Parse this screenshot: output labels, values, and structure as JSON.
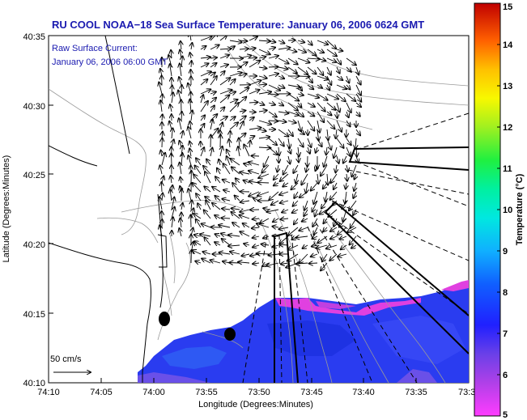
{
  "title": "RU COOL  NOAA−18  Sea Surface Temperature:  January 06, 2006 0624 GMT",
  "current_annotation": {
    "line1": "Raw Surface Current:",
    "line2": "January 06, 2006 06:00 GMT"
  },
  "scale_label": "50 cm/s",
  "axes": {
    "xlabel": "Longitude (Degrees:Minutes)",
    "ylabel": "Latitude (Degrees:Minutes)",
    "x_ticks": [
      "74:10",
      "74:05",
      "74:00",
      "73:55",
      "73:50",
      "73:45",
      "73:40",
      "73:35",
      "73:3"
    ],
    "y_ticks": [
      "40:35",
      "40:30",
      "40:25",
      "40:20",
      "40:15",
      "40:10"
    ]
  },
  "colorbar": {
    "label": "Temperature (°C)",
    "ticks": [
      "15",
      "14",
      "13",
      "12",
      "11",
      "10",
      "9",
      "8",
      "7",
      "6",
      "5"
    ]
  },
  "colors": {
    "title": "#1a1ab0",
    "sst_main": "#2a3cf0",
    "sst_cold": "#e040e0",
    "land_contour": "#999999"
  }
}
